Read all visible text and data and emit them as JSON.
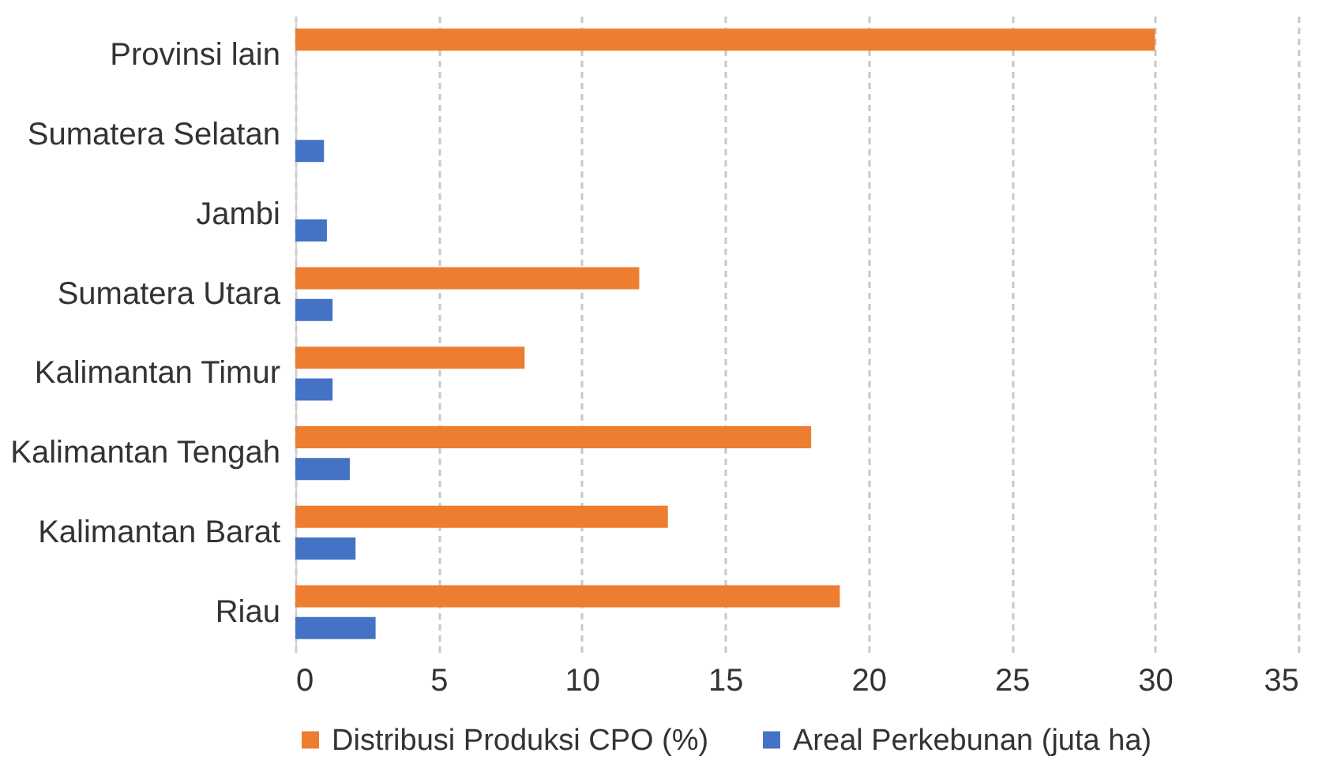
{
  "chart_data": {
    "type": "bar",
    "orientation": "horizontal",
    "categories": [
      "Provinsi lain",
      "Sumatera Selatan",
      "Jambi",
      "Sumatera Utara",
      "Kalimantan Timur",
      "Kalimantan Tengah",
      "Kalimantan Barat",
      "Riau"
    ],
    "series": [
      {
        "name": "Distribusi Produksi CPO (%)",
        "color": "#ed7d31",
        "values": [
          30,
          null,
          null,
          12,
          8,
          18,
          13,
          19
        ]
      },
      {
        "name": "Areal Perkebunan (juta ha)",
        "color": "#4472c4",
        "values": [
          null,
          1.0,
          1.1,
          1.3,
          1.3,
          1.9,
          2.1,
          2.8
        ]
      }
    ],
    "xlim": [
      0,
      35
    ],
    "xticks": [
      0,
      5,
      10,
      15,
      20,
      25,
      30,
      35
    ],
    "grid": "x",
    "legend": "bottom"
  }
}
